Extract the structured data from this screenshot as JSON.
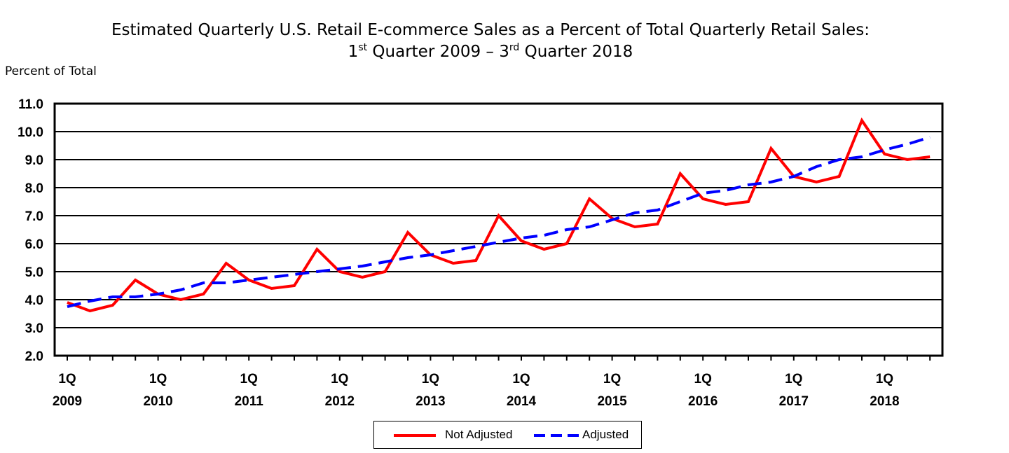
{
  "title_line1": "Estimated Quarterly U.S. Retail E-commerce Sales as a Percent of Total Quarterly Retail Sales:",
  "title_line2": {
    "a": "1",
    "a_sup": "st",
    "b": " Quarter 2009 – 3",
    "b_sup": "rd",
    "c": " Quarter 2018"
  },
  "chart_data": {
    "type": "line",
    "title": "Estimated Quarterly U.S. Retail E-commerce Sales as a Percent of Total Quarterly Retail Sales: 1st Quarter 2009 – 3rd Quarter 2018",
    "ylabel": "Percent of Total",
    "xlabel": "",
    "ylim": [
      2.0,
      11.0
    ],
    "yticks": [
      "2.0",
      "3.0",
      "4.0",
      "5.0",
      "6.0",
      "7.0",
      "8.0",
      "9.0",
      "10.0",
      "11.0"
    ],
    "xtick_labels": [
      {
        "q": "1Q",
        "year": "2009",
        "index": 0
      },
      {
        "q": "1Q",
        "year": "2010",
        "index": 4
      },
      {
        "q": "1Q",
        "year": "2011",
        "index": 8
      },
      {
        "q": "1Q",
        "year": "2012",
        "index": 12
      },
      {
        "q": "1Q",
        "year": "2013",
        "index": 16
      },
      {
        "q": "1Q",
        "year": "2014",
        "index": 20
      },
      {
        "q": "1Q",
        "year": "2015",
        "index": 24
      },
      {
        "q": "1Q",
        "year": "2016",
        "index": 28
      },
      {
        "q": "1Q",
        "year": "2017",
        "index": 32
      },
      {
        "q": "1Q",
        "year": "2018",
        "index": 36
      }
    ],
    "categories": [
      "1Q2009",
      "2Q2009",
      "3Q2009",
      "4Q2009",
      "1Q2010",
      "2Q2010",
      "3Q2010",
      "4Q2010",
      "1Q2011",
      "2Q2011",
      "3Q2011",
      "4Q2011",
      "1Q2012",
      "2Q2012",
      "3Q2012",
      "4Q2012",
      "1Q2013",
      "2Q2013",
      "3Q2013",
      "4Q2013",
      "1Q2014",
      "2Q2014",
      "3Q2014",
      "4Q2014",
      "1Q2015",
      "2Q2015",
      "3Q2015",
      "4Q2015",
      "1Q2016",
      "2Q2016",
      "3Q2016",
      "4Q2016",
      "1Q2017",
      "2Q2017",
      "3Q2017",
      "4Q2017",
      "1Q2018",
      "2Q2018",
      "3Q2018"
    ],
    "series": [
      {
        "name": "Not Adjusted",
        "color": "#ff0000",
        "style": "solid",
        "values": [
          3.9,
          3.6,
          3.8,
          4.7,
          4.2,
          4.0,
          4.2,
          5.3,
          4.7,
          4.4,
          4.5,
          5.8,
          5.0,
          4.8,
          5.0,
          6.4,
          5.6,
          5.3,
          5.4,
          7.0,
          6.1,
          5.8,
          6.0,
          7.6,
          6.9,
          6.6,
          6.7,
          8.5,
          7.6,
          7.4,
          7.5,
          9.4,
          8.4,
          8.2,
          8.4,
          10.4,
          9.2,
          9.0,
          9.1
        ]
      },
      {
        "name": "Adjusted",
        "color": "#0000ff",
        "style": "dashed",
        "values": [
          3.75,
          3.95,
          4.1,
          4.1,
          4.2,
          4.35,
          4.6,
          4.6,
          4.7,
          4.8,
          4.9,
          5.0,
          5.1,
          5.2,
          5.35,
          5.5,
          5.6,
          5.75,
          5.9,
          6.05,
          6.2,
          6.3,
          6.5,
          6.6,
          6.85,
          7.1,
          7.2,
          7.5,
          7.8,
          7.9,
          8.1,
          8.2,
          8.4,
          8.75,
          9.0,
          9.1,
          9.35,
          9.55,
          9.8
        ]
      }
    ],
    "legend": {
      "position": "bottom-center"
    },
    "grid": true
  }
}
